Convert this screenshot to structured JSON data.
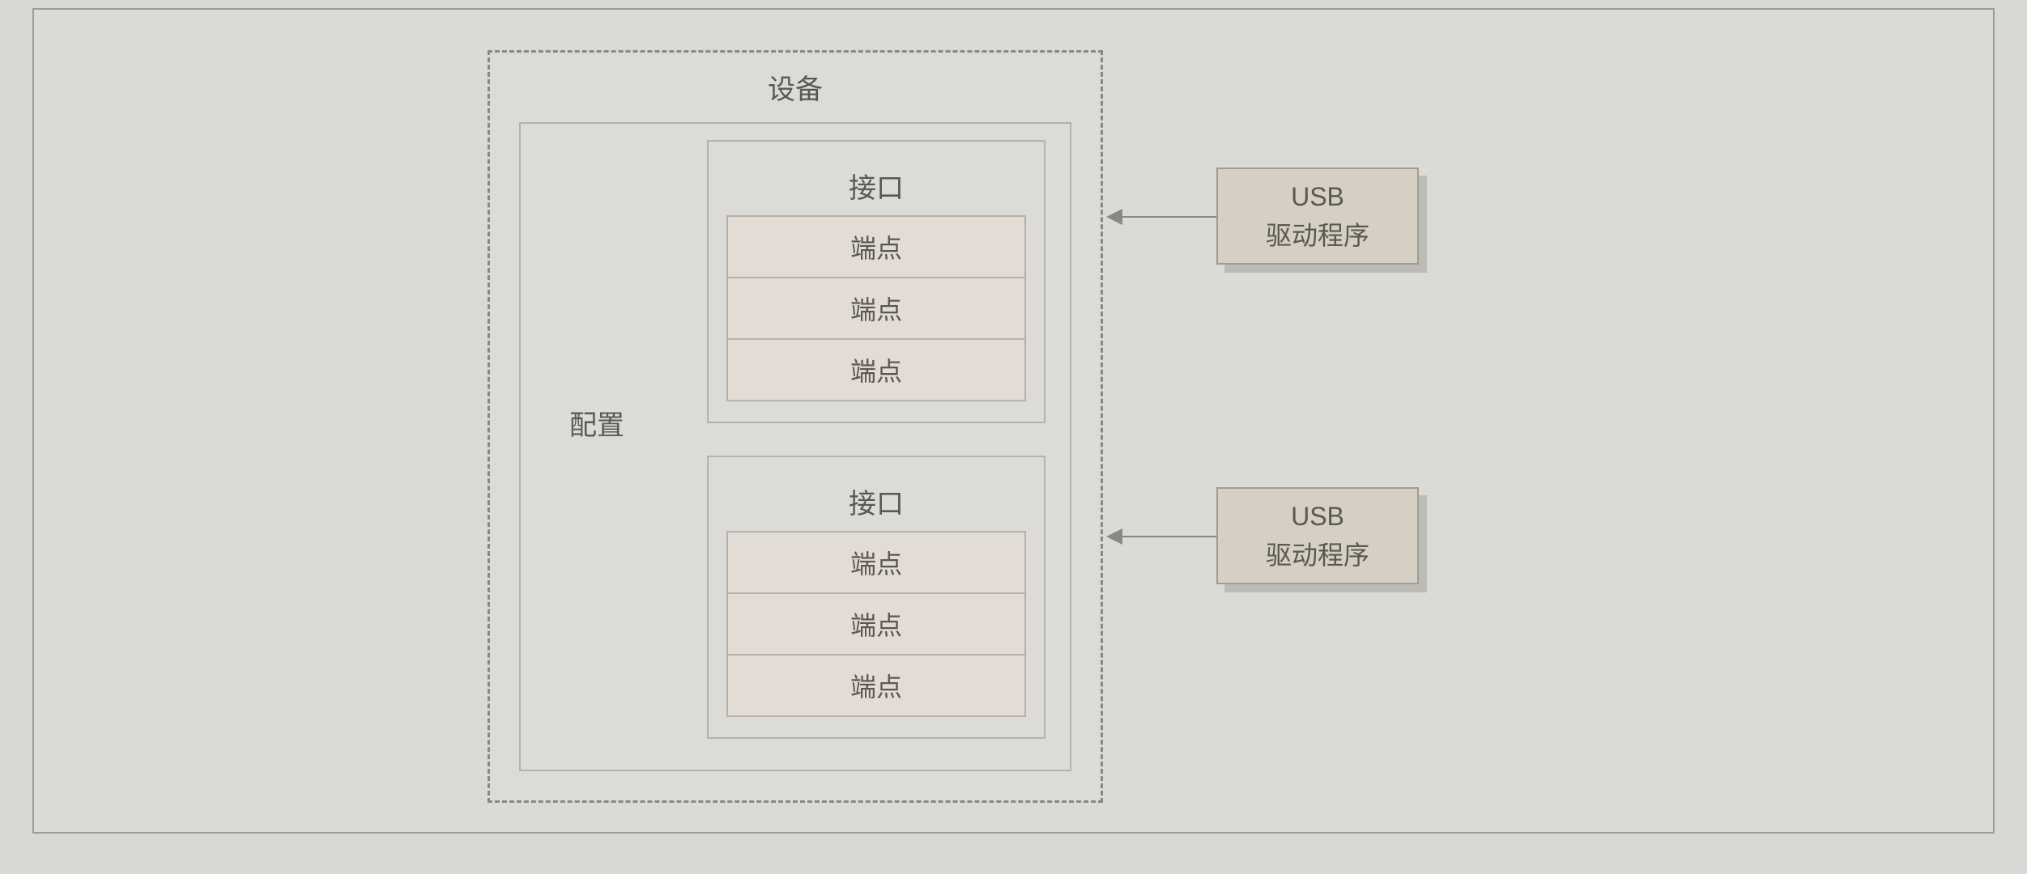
{
  "diagram": {
    "type": "flowchart",
    "background_color": "#d9d8d4",
    "border_color": "#9e9c96",
    "dash_border_color": "#8a8882",
    "box_border_color": "#b4b2ac",
    "endpoint_fill": "#e2dcd4",
    "driver_fill": "#d6d0c4",
    "shadow_color": "#bdbbb5",
    "text_color": "#5a5852",
    "label_fontsize": 34,
    "endpoint_fontsize": 32,
    "device": {
      "label": "设备",
      "config": {
        "label": "配置",
        "interfaces": [
          {
            "label": "接口",
            "endpoints": [
              "端点",
              "端点",
              "端点"
            ]
          },
          {
            "label": "接口",
            "endpoints": [
              "端点",
              "端点",
              "端点"
            ]
          }
        ]
      }
    },
    "drivers": [
      {
        "line1": "USB",
        "line2": "驱动程序"
      },
      {
        "line1": "USB",
        "line2": "驱动程序"
      }
    ]
  }
}
